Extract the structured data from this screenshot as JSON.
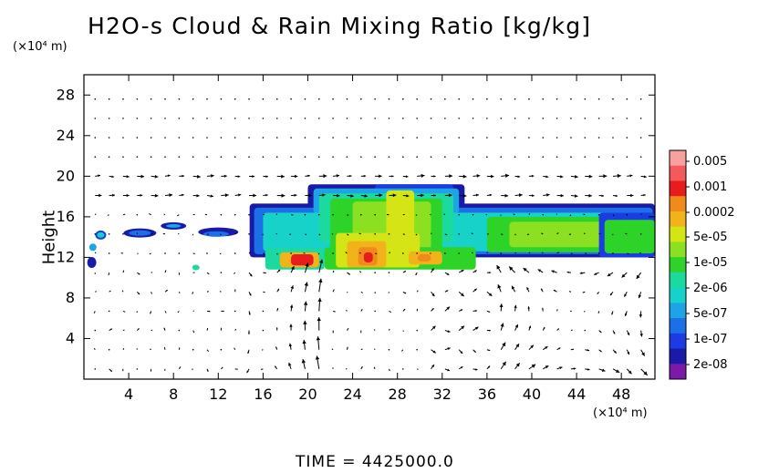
{
  "chart_data": {
    "type": "heatmap",
    "title": "H2O-s Cloud & Rain Mixing Ratio [kg/kg]",
    "ylabel": "Height",
    "x_unit": "(×10⁴ m)",
    "y_unit": "(×10⁴ m)",
    "xlim": [
      0,
      51
    ],
    "ylim": [
      0,
      30
    ],
    "x_ticks": [
      "4",
      "8",
      "12",
      "16",
      "20",
      "24",
      "28",
      "32",
      "36",
      "40",
      "44",
      "48"
    ],
    "y_ticks": [
      "4",
      "8",
      "12",
      "16",
      "20",
      "24",
      "28"
    ],
    "colorbar": {
      "labels": [
        "0.005",
        "0.001",
        "0.0002",
        "5e-05",
        "1e-05",
        "2e-06",
        "5e-07",
        "1e-07",
        "2e-08"
      ],
      "colors": [
        "#f7a0a0",
        "#f45a5a",
        "#e81c1c",
        "#f08a1a",
        "#f2b21a",
        "#d4e414",
        "#8ae021",
        "#2ed32a",
        "#1cd9a0",
        "#17d2c8",
        "#1da4e6",
        "#1c6fe6",
        "#1a3ce2",
        "#1a1aa8",
        "#7a1aa6"
      ]
    },
    "wind_vectors": "present"
  },
  "time_label": "TIME = 4425000.0",
  "colors": {
    "axes": "#000000",
    "background": "#ffffff"
  }
}
